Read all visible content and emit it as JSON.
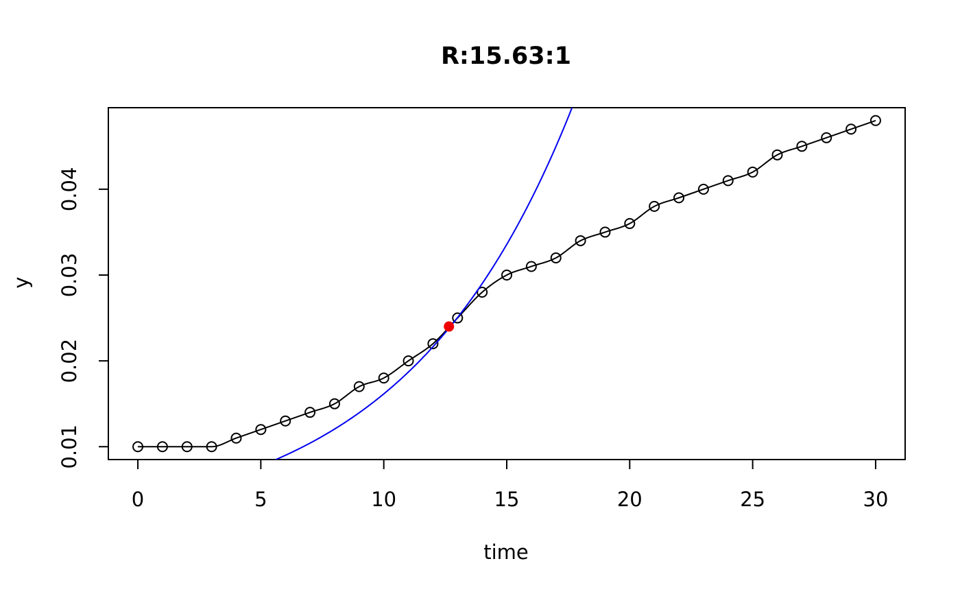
{
  "chart_data": {
    "type": "scatter",
    "title": "R:15.63:1",
    "xlabel": "time",
    "ylabel": "y",
    "xlim": [
      -1.2,
      31.2
    ],
    "ylim": [
      0.0085,
      0.0495
    ],
    "xticks": [
      0,
      5,
      10,
      15,
      20,
      25,
      30
    ],
    "xtick_labels": [
      "0",
      "5",
      "10",
      "15",
      "20",
      "25",
      "30"
    ],
    "yticks": [
      0.01,
      0.02,
      0.03,
      0.04
    ],
    "ytick_labels": [
      "0.01",
      "0.02",
      "0.03",
      "0.04"
    ],
    "grid": false,
    "legend": "none",
    "series": [
      {
        "style": "points+smooth-line",
        "color": "#000000",
        "x": [
          0,
          1,
          2,
          3,
          4,
          5,
          6,
          7,
          8,
          9,
          10,
          11,
          12,
          13,
          14,
          15,
          16,
          17,
          18,
          19,
          20,
          21,
          22,
          23,
          24,
          25,
          26,
          27,
          28,
          29,
          30
        ],
        "y": [
          0.01,
          0.01,
          0.01,
          0.01,
          0.011,
          0.012,
          0.013,
          0.014,
          0.015,
          0.017,
          0.018,
          0.02,
          0.022,
          0.025,
          0.028,
          0.03,
          0.031,
          0.032,
          0.034,
          0.035,
          0.036,
          0.038,
          0.039,
          0.04,
          0.041,
          0.042,
          0.044,
          0.045,
          0.046,
          0.047,
          0.048
        ]
      },
      {
        "style": "exponential-fit",
        "color": "#0000ee",
        "y0": 0.00374,
        "r": 0.1463,
        "x_range": [
          4.2,
          18.6
        ]
      },
      {
        "style": "highlight-point",
        "color": "#ee0000",
        "x": [
          12.65
        ],
        "y": [
          0.024
        ]
      }
    ]
  }
}
